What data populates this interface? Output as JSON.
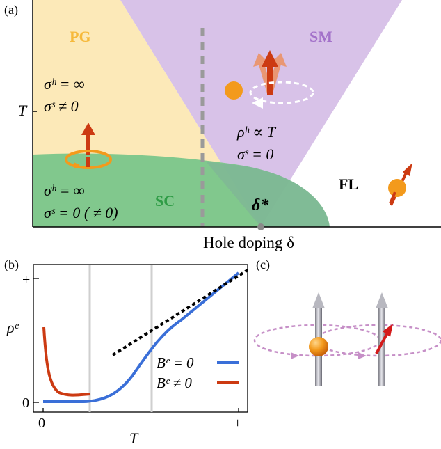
{
  "panel_a": {
    "label": "(a)",
    "y_axis_label": "T",
    "x_axis_label": "Hole doping δ",
    "critical_point_label": "δ*",
    "regions": {
      "pg": {
        "label": "PG",
        "color": "#fce9b8",
        "text_color": "#f6b93b"
      },
      "sm": {
        "label": "SM",
        "color": "#d8c2e8",
        "text_color": "#a270c9"
      },
      "sc": {
        "label": "SC",
        "color": "#7ac68a",
        "text_color": "#2f9c46"
      },
      "fl": {
        "label": "FL"
      }
    },
    "pg_annotation": {
      "line1": "σʰ = ∞",
      "line2": "σˢ ≠ 0"
    },
    "sm_annotation": {
      "line1": "ρʰ ∝ T",
      "line2": "σˢ = 0"
    },
    "sc_annotation": {
      "line1": "σʰ = ∞",
      "line2": "σˢ = 0 ( ≠ 0)"
    }
  },
  "panel_b": {
    "label": "(b)",
    "y_axis_label": "ρᵉ",
    "x_axis_label": "T",
    "x_ticks": [
      "0",
      "+"
    ],
    "y_ticks": [
      "0",
      "+"
    ],
    "legend": [
      {
        "label": "Bᵉ = 0",
        "color": "#3a6fd8"
      },
      {
        "label": "Bᵉ ≠ 0",
        "color": "#cc3a12"
      }
    ]
  },
  "panel_c": {
    "label": "(c)"
  }
}
